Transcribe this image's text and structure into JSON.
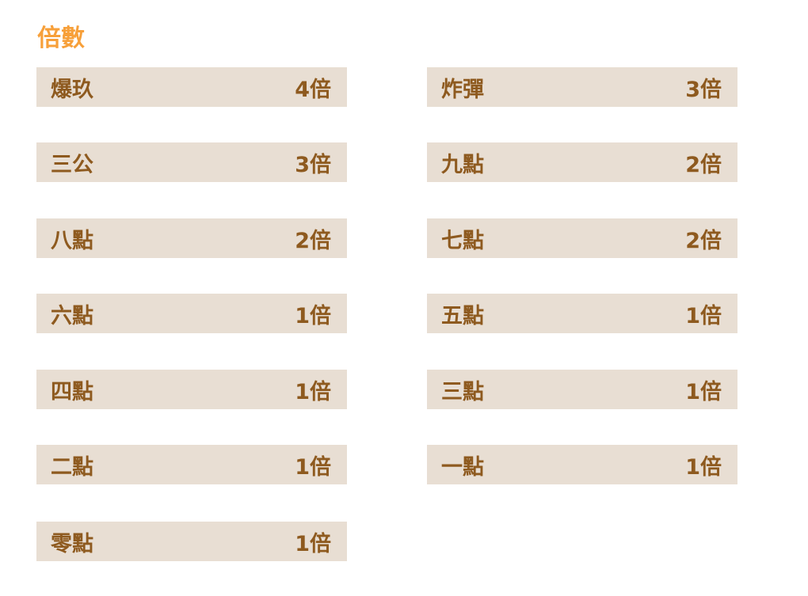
{
  "title": "倍數",
  "rows": [
    {
      "name": "爆玖",
      "multiplier": "4倍"
    },
    {
      "name": "炸彈",
      "multiplier": "3倍"
    },
    {
      "name": "三公",
      "multiplier": "3倍"
    },
    {
      "name": "九點",
      "multiplier": "2倍"
    },
    {
      "name": "八點",
      "multiplier": "2倍"
    },
    {
      "name": "七點",
      "multiplier": "2倍"
    },
    {
      "name": "六點",
      "multiplier": "1倍"
    },
    {
      "name": "五點",
      "multiplier": "1倍"
    },
    {
      "name": "四點",
      "multiplier": "1倍"
    },
    {
      "name": "三點",
      "multiplier": "1倍"
    },
    {
      "name": "二點",
      "multiplier": "1倍"
    },
    {
      "name": "一點",
      "multiplier": "1倍"
    },
    {
      "name": "零點",
      "multiplier": "1倍"
    }
  ]
}
